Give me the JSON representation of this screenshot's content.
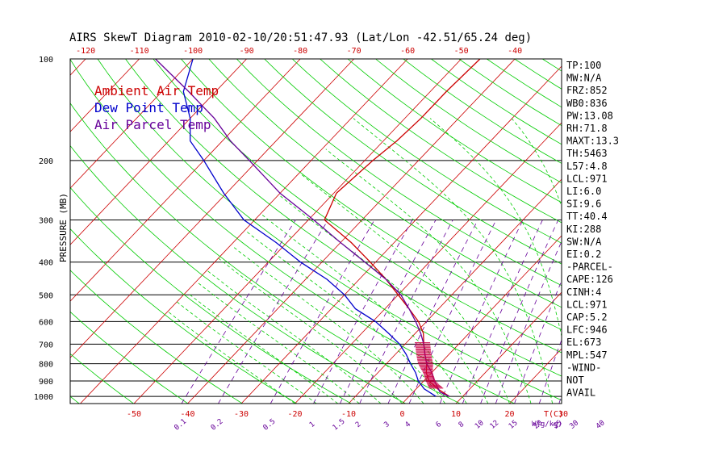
{
  "chart_data": {
    "type": "line",
    "title": "AIRS SkewT Diagram 2010-02-10/20:51:47.93 (Lat/Lon -42.51/65.24 deg)",
    "ylabel": "PRESSURE (MB)",
    "xlabel": "T(C)",
    "mixing_ratio_label": "W(g/kg)",
    "pressure_ticks": [
      "100",
      "200",
      "300",
      "400",
      "500",
      "600",
      "700",
      "800",
      "900",
      "1000"
    ],
    "top_temp_ticks": [
      "-120",
      "-110",
      "-100",
      "-90",
      "-80",
      "-70",
      "-60",
      "-50",
      "-40"
    ],
    "bottom_temp_ticks": [
      "-50",
      "-40",
      "-30",
      "-20",
      "-10",
      "0",
      "10",
      "20",
      "30"
    ],
    "mixing_ratio_ticks": [
      "0.1",
      "0.2",
      "0.5",
      "1",
      "1.5",
      "2",
      "3",
      "4",
      "6",
      "8",
      "10",
      "12",
      "15",
      "20",
      "25",
      "30",
      "40"
    ],
    "legend": [
      {
        "label": "Ambient Air Temp",
        "color": "#cc0000"
      },
      {
        "label": "Dew Point Temp",
        "color": "#0000cc"
      },
      {
        "label": "Air Parcel Temp",
        "color": "#660099"
      }
    ],
    "colors": {
      "isotherm": "#cc0000",
      "dry_adiabat": "#00cc00",
      "moist_adiabat": "#00cc00",
      "mixing_ratio": "#660099",
      "cape_hatch": "#cc0044"
    },
    "series": [
      {
        "name": "Ambient Air Temp",
        "pressure": [
          1000,
          950,
          900,
          850,
          800,
          750,
          700,
          650,
          600,
          550,
          500,
          450,
          400,
          350,
          300,
          250,
          200,
          175,
          150,
          125,
          100
        ],
        "values": [
          7.5,
          4.0,
          1.0,
          -1.0,
          -2.5,
          -4.5,
          -6.5,
          -8.5,
          -11.5,
          -15.5,
          -20.0,
          -25.0,
          -31.0,
          -38.0,
          -47.0,
          -49.5,
          -48.5,
          -47.5,
          -47.0,
          -47.0,
          -46.5
        ]
      },
      {
        "name": "Dew Point Temp",
        "pressure": [
          1000,
          950,
          900,
          850,
          800,
          750,
          700,
          650,
          600,
          550,
          500,
          450,
          400,
          350,
          300,
          250,
          200,
          175,
          150,
          125,
          100
        ],
        "values": [
          5.0,
          1.5,
          -1.0,
          -3.0,
          -5.5,
          -8.0,
          -11.0,
          -15.0,
          -19.5,
          -25.5,
          -30.0,
          -36.0,
          -44.0,
          -52.0,
          -62.0,
          -70.5,
          -80.0,
          -86.0,
          -90.0,
          -96.0,
          -100.0
        ]
      },
      {
        "name": "Air Parcel Temp",
        "pressure": [
          1000,
          971,
          900,
          850,
          800,
          750,
          700,
          650,
          600,
          550,
          500,
          450,
          400,
          350,
          300,
          250,
          200,
          175,
          150,
          125,
          100
        ],
        "values": [
          7.5,
          5.0,
          2.0,
          0.0,
          -2.5,
          -4.5,
          -6.5,
          -9.0,
          -12.0,
          -15.5,
          -19.5,
          -25.0,
          -32.0,
          -40.0,
          -49.0,
          -60.0,
          -71.5,
          -78.5,
          -85.5,
          -95.0,
          -107.0
        ]
      }
    ],
    "indices": [
      "TP:100",
      "MW:N/A",
      "FRZ:852",
      "WB0:836",
      "PW:13.08",
      "RH:71.8",
      "MAXT:13.3",
      "TH:5463",
      "L57:4.8",
      "LCL:971",
      "LI:6.0",
      "SI:9.6",
      "TT:40.4",
      "KI:288",
      "SW:N/A",
      "EI:0.2",
      "-PARCEL-",
      "CAPE:126",
      "CINH:4",
      "LCL:971",
      "CAP:5.2",
      "LFC:946",
      "EL:673",
      "MPL:547",
      "-WIND-",
      "NOT",
      "AVAIL"
    ]
  }
}
